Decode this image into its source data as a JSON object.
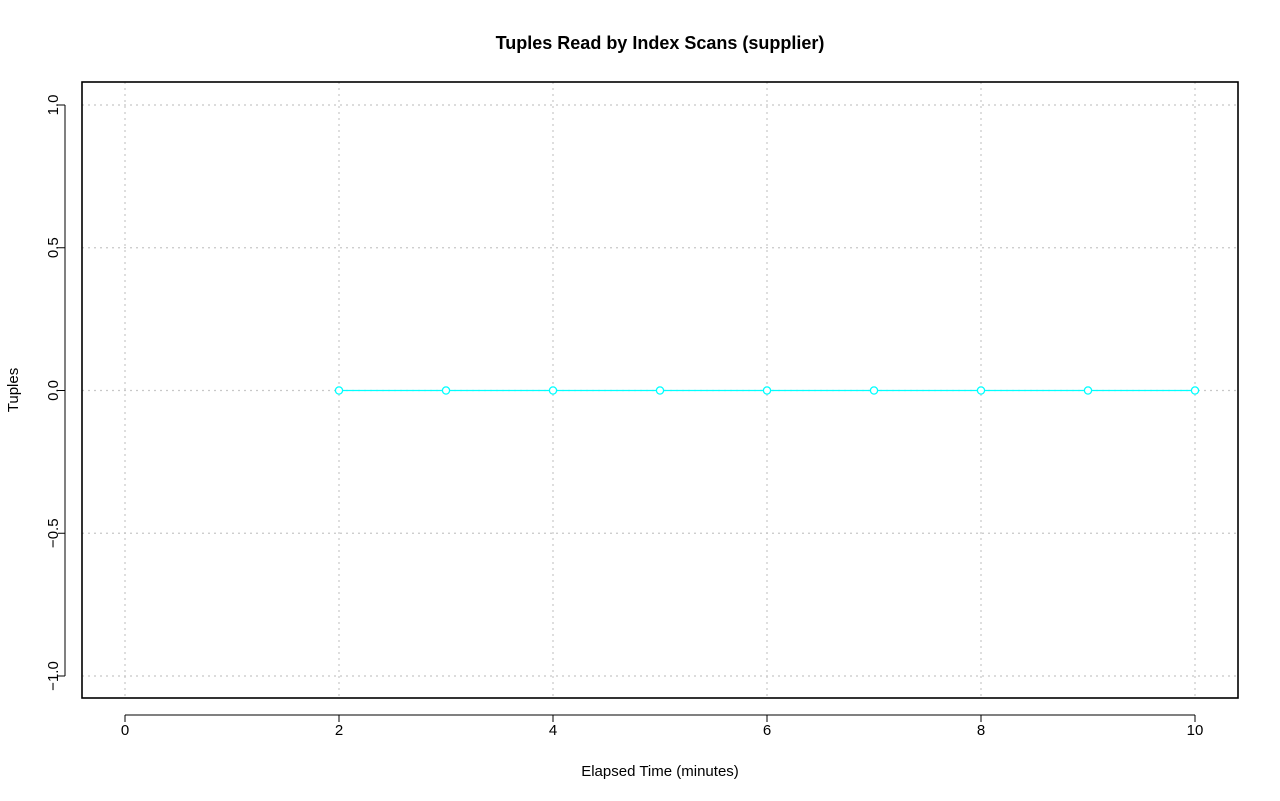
{
  "chart_data": {
    "type": "line",
    "title": "Tuples Read by Index Scans (supplier)",
    "xlabel": "Elapsed Time (minutes)",
    "ylabel": "Tuples",
    "xlim": [
      0,
      10
    ],
    "ylim": [
      -1,
      1
    ],
    "x_ticks": [
      0,
      2,
      4,
      6,
      8,
      10
    ],
    "y_ticks": [
      -1.0,
      -0.5,
      0.0,
      0.5,
      1.0
    ],
    "x_tick_labels": [
      "0",
      "2",
      "4",
      "6",
      "8",
      "10"
    ],
    "y_tick_labels": [
      "−1.0",
      "−0.5",
      "0.0",
      "0.5",
      "1.0"
    ],
    "grid": true,
    "x_grid": [
      0,
      2,
      4,
      6,
      8,
      10
    ],
    "y_grid": [
      -1.0,
      -0.5,
      0.0,
      0.5,
      1.0
    ],
    "series": [
      {
        "color": "#00ffff",
        "marker": "circle-open",
        "line_style": "solid",
        "x": [
          2,
          3,
          4,
          5,
          6,
          7,
          8,
          9,
          10
        ],
        "y": [
          0,
          0,
          0,
          0,
          0,
          0,
          0,
          0,
          0
        ]
      }
    ]
  }
}
